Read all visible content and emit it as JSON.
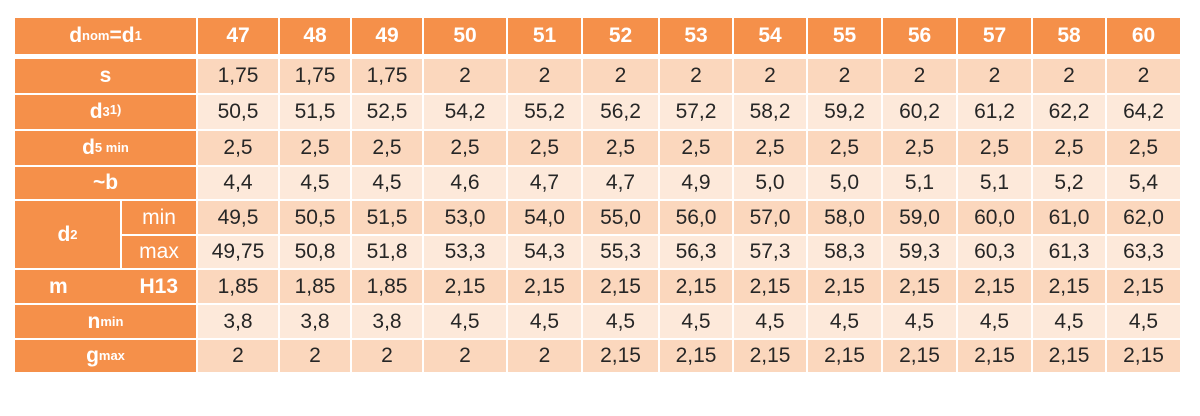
{
  "table": {
    "header": {
      "label_main": "d",
      "label_sub1": "nom",
      "label_eq": "=d",
      "label_sub2": "1",
      "columns": [
        "47",
        "48",
        "49",
        "50",
        "51",
        "52",
        "53",
        "54",
        "55",
        "56",
        "57",
        "58",
        "60"
      ]
    },
    "rows": [
      {
        "label": {
          "main": "s",
          "sub": "",
          "sup": ""
        },
        "values": [
          "1,75",
          "1,75",
          "1,75",
          "2",
          "2",
          "2",
          "2",
          "2",
          "2",
          "2",
          "2",
          "2",
          "2"
        ]
      },
      {
        "label": {
          "main": "d",
          "sub": "3",
          "sup": "1)"
        },
        "values": [
          "50,5",
          "51,5",
          "52,5",
          "54,2",
          "55,2",
          "56,2",
          "57,2",
          "58,2",
          "59,2",
          "60,2",
          "61,2",
          "62,2",
          "64,2"
        ]
      },
      {
        "label": {
          "main": "d",
          "sub": "5 min",
          "sup": ""
        },
        "values": [
          "2,5",
          "2,5",
          "2,5",
          "2,5",
          "2,5",
          "2,5",
          "2,5",
          "2,5",
          "2,5",
          "2,5",
          "2,5",
          "2,5",
          "2,5"
        ]
      },
      {
        "label": {
          "main": "~b",
          "sub": "",
          "sup": ""
        },
        "values": [
          "4,4",
          "4,5",
          "4,5",
          "4,6",
          "4,7",
          "4,7",
          "4,9",
          "5,0",
          "5,0",
          "5,1",
          "5,1",
          "5,2",
          "5,4"
        ]
      },
      {
        "group_label": {
          "main": "d",
          "sub": "2"
        },
        "label": {
          "main": "min",
          "sub": "",
          "sup": ""
        },
        "values": [
          "49,5",
          "50,5",
          "51,5",
          "53,0",
          "54,0",
          "55,0",
          "56,0",
          "57,0",
          "58,0",
          "59,0",
          "60,0",
          "61,0",
          "62,0"
        ]
      },
      {
        "label": {
          "main": "max",
          "sub": "",
          "sup": ""
        },
        "values": [
          "49,75",
          "50,8",
          "51,8",
          "53,3",
          "54,3",
          "55,3",
          "56,3",
          "57,3",
          "58,3",
          "59,3",
          "60,3",
          "61,3",
          "63,3"
        ]
      },
      {
        "label": {
          "main": "m",
          "tolerance": "H13"
        },
        "values": [
          "1,85",
          "1,85",
          "1,85",
          "2,15",
          "2,15",
          "2,15",
          "2,15",
          "2,15",
          "2,15",
          "2,15",
          "2,15",
          "2,15",
          "2,15"
        ]
      },
      {
        "label": {
          "main": "n",
          "sub": "min",
          "sup": ""
        },
        "values": [
          "3,8",
          "3,8",
          "3,8",
          "4,5",
          "4,5",
          "4,5",
          "4,5",
          "4,5",
          "4,5",
          "4,5",
          "4,5",
          "4,5",
          "4,5"
        ]
      },
      {
        "label": {
          "main": "g",
          "sub": "max",
          "sup": ""
        },
        "values": [
          "2",
          "2",
          "2",
          "2",
          "2",
          "2,15",
          "2,15",
          "2,15",
          "2,15",
          "2,15",
          "2,15",
          "2,15",
          "2,15"
        ]
      }
    ],
    "colors": {
      "header_orange": "#f5904a",
      "row_light": "#fbd7bd",
      "row_lighter": "#fde9da",
      "text_dark": "#262626",
      "text_white": "#ffffff"
    }
  }
}
